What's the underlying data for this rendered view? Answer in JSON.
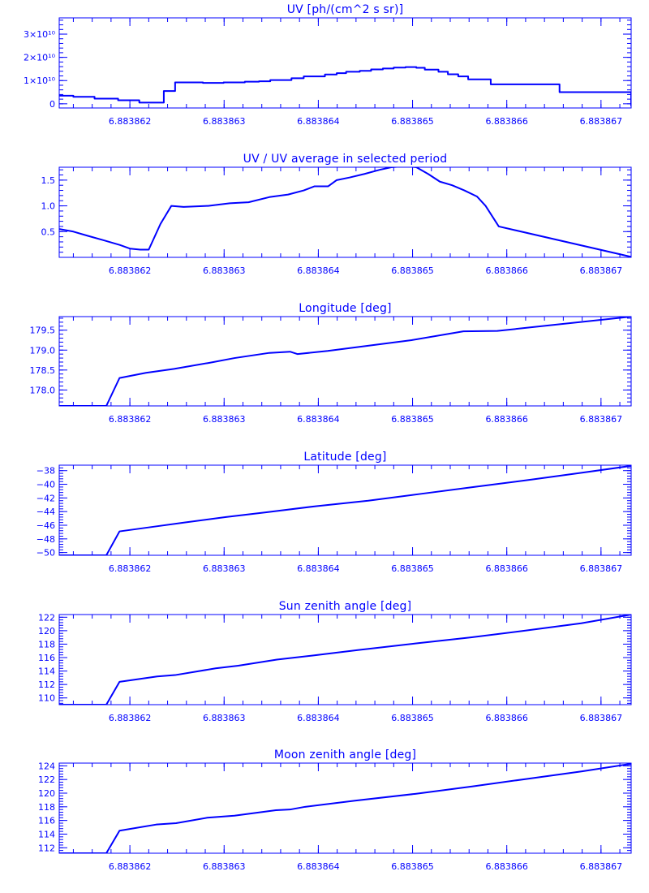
{
  "style": {
    "color": "#0000ff"
  },
  "chart_data": [
    {
      "id": "uv",
      "type": "line",
      "step": true,
      "title": "UV [ph/(cm^2 s sr)]",
      "xlabel": "",
      "ylabel": "",
      "xlim": [
        6.88386125,
        6.88386732
      ],
      "ylim": [
        -0.18,
        3.7
      ],
      "yscale_factor": "10^10",
      "xticks": [
        6.883862,
        6.883863,
        6.883864,
        6.883865,
        6.883866,
        6.883867
      ],
      "xtick_labels": [
        "6.883862",
        "6.883863",
        "6.883864",
        "6.883865",
        "6.883866",
        "6.883867"
      ],
      "yticks": [
        0,
        1,
        2,
        3
      ],
      "ytick_labels": [
        "0",
        "1×10¹⁰",
        "2×10¹⁰",
        "3×10¹⁰"
      ],
      "series": [
        {
          "x": [
            6.88386125,
            6.8838614,
            6.883861625,
            6.883861875,
            6.8838621,
            6.88386236,
            6.88386248,
            6.883862775,
            6.883862995,
            6.88386322,
            6.88386337,
            6.88386349,
            6.883863715,
            6.883863845,
            6.88386407,
            6.883864195,
            6.883864295,
            6.88386444,
            6.88386456,
            6.883864685,
            6.8838648,
            6.883864925,
            6.88386504,
            6.88386513,
            6.883865275,
            6.883865375,
            6.883865485,
            6.88386559,
            6.88386583,
            6.88386656,
            6.88386732
          ],
          "y": [
            0.35,
            0.3,
            0.22,
            0.15,
            0.05,
            0.55,
            0.92,
            0.9,
            0.92,
            0.95,
            0.97,
            1.02,
            1.1,
            1.18,
            1.26,
            1.32,
            1.38,
            1.42,
            1.48,
            1.52,
            1.56,
            1.58,
            1.55,
            1.47,
            1.38,
            1.27,
            1.18,
            1.05,
            0.84,
            0.5,
            -0.1
          ]
        }
      ]
    },
    {
      "id": "uv-ratio",
      "type": "line",
      "title": "UV / UV average in selected period",
      "xlabel": "",
      "ylabel": "",
      "xlim": [
        6.88386125,
        6.88386732
      ],
      "ylim": [
        0.0,
        1.75
      ],
      "xticks": [
        6.883862,
        6.883863,
        6.883864,
        6.883865,
        6.883866,
        6.883867
      ],
      "xtick_labels": [
        "6.883862",
        "6.883863",
        "6.883864",
        "6.883865",
        "6.883866",
        "6.883867"
      ],
      "yticks": [
        0.5,
        1.0,
        1.5
      ],
      "ytick_labels": [
        "0.5",
        "1.0",
        "1.5"
      ],
      "series": [
        {
          "x": [
            6.88386125,
            6.8838614,
            6.88386155,
            6.883861725,
            6.883861895,
            6.883862,
            6.88386211,
            6.8838622,
            6.883862325,
            6.88386244,
            6.88386257,
            6.88386283,
            6.88386306,
            6.88386326,
            6.88386348,
            6.88386368,
            6.883863845,
            6.88386396,
            6.883864105,
            6.883864195,
            6.88386433,
            6.88386449,
            6.88386465,
            6.883864775,
            6.883864925,
            6.88386504,
            6.883865165,
            6.88386529,
            6.88386542,
            6.88386555,
            6.883865685,
            6.883865775,
            6.883865915,
            6.88386732
          ],
          "y": [
            0.55,
            0.5,
            0.42,
            0.33,
            0.24,
            0.17,
            0.15,
            0.15,
            0.65,
            1.0,
            0.98,
            1.0,
            1.05,
            1.07,
            1.17,
            1.22,
            1.3,
            1.38,
            1.38,
            1.5,
            1.55,
            1.62,
            1.7,
            1.75,
            1.77,
            1.75,
            1.62,
            1.47,
            1.4,
            1.3,
            1.18,
            1.0,
            0.6,
            0.01
          ]
        }
      ]
    },
    {
      "id": "longitude",
      "type": "line",
      "title": "Longitude [deg]",
      "xlabel": "",
      "ylabel": "",
      "xlim": [
        6.88386125,
        6.88386732
      ],
      "ylim": [
        177.6,
        179.84
      ],
      "xticks": [
        6.883862,
        6.883863,
        6.883864,
        6.883865,
        6.883866,
        6.883867
      ],
      "xtick_labels": [
        "6.883862",
        "6.883863",
        "6.883864",
        "6.883865",
        "6.883866",
        "6.883867"
      ],
      "yticks": [
        178.0,
        178.5,
        179.0,
        179.5
      ],
      "ytick_labels": [
        "178.0",
        "178.5",
        "179.0",
        "179.5"
      ],
      "series": [
        {
          "x": [
            6.88386125,
            6.88386175,
            6.88386189,
            6.88386217,
            6.88386247,
            6.88386284,
            6.88386311,
            6.88386348,
            6.8838637,
            6.88386378,
            6.8838641,
            6.88386499,
            6.88386554,
            6.8838659,
            6.88386629,
            6.88386732
          ],
          "y": [
            177.6,
            177.6,
            178.3,
            178.43,
            178.53,
            178.68,
            178.8,
            178.93,
            178.96,
            178.9,
            178.98,
            179.25,
            179.47,
            179.48,
            179.58,
            179.84
          ]
        }
      ]
    },
    {
      "id": "latitude",
      "type": "line",
      "title": "Latitude [deg]",
      "xlabel": "",
      "ylabel": "",
      "xlim": [
        6.88386125,
        6.88386732
      ],
      "ylim": [
        -50.4,
        -37.2
      ],
      "xticks": [
        6.883862,
        6.883863,
        6.883864,
        6.883865,
        6.883866,
        6.883867
      ],
      "xtick_labels": [
        "6.883862",
        "6.883863",
        "6.883864",
        "6.883865",
        "6.883866",
        "6.883867"
      ],
      "yticks": [
        -50,
        -48,
        -46,
        -44,
        -42,
        -40,
        -38
      ],
      "ytick_labels": [
        "−50",
        "−48",
        "−46",
        "−44",
        "−42",
        "−40",
        "−38"
      ],
      "series": [
        {
          "x": [
            6.88386125,
            6.88386175,
            6.88386189,
            6.88386226,
            6.88386258,
            6.88386302,
            6.88386345,
            6.88386398,
            6.88386453,
            6.88386509,
            6.88386565,
            6.88386627,
            6.8838668,
            6.88386732
          ],
          "y": [
            -50.4,
            -50.4,
            -46.9,
            -46.2,
            -45.6,
            -44.8,
            -44.1,
            -43.2,
            -42.4,
            -41.4,
            -40.4,
            -39.3,
            -38.3,
            -37.3
          ]
        }
      ]
    },
    {
      "id": "sun-zenith",
      "type": "line",
      "title": "Sun zenith angle [deg]",
      "xlabel": "",
      "ylabel": "",
      "xlim": [
        6.88386125,
        6.88386732
      ],
      "ylim": [
        109.0,
        122.4
      ],
      "xticks": [
        6.883862,
        6.883863,
        6.883864,
        6.883865,
        6.883866,
        6.883867
      ],
      "xtick_labels": [
        "6.883862",
        "6.883863",
        "6.883864",
        "6.883865",
        "6.883866",
        "6.883867"
      ],
      "yticks": [
        110,
        112,
        114,
        116,
        118,
        120,
        122
      ],
      "ytick_labels": [
        "110",
        "112",
        "114",
        "116",
        "118",
        "120",
        "122"
      ],
      "series": [
        {
          "x": [
            6.88386125,
            6.88386175,
            6.88386189,
            6.88386229,
            6.88386248,
            6.88386291,
            6.88386315,
            6.88386356,
            6.88386394,
            6.88386441,
            6.88386503,
            6.88386562,
            6.88386619,
            6.88386679,
            6.88386732
          ],
          "y": [
            109.0,
            109.0,
            112.4,
            113.2,
            113.4,
            114.4,
            114.8,
            115.7,
            116.3,
            117.1,
            118.1,
            119.0,
            120.0,
            121.1,
            122.4
          ]
        }
      ]
    },
    {
      "id": "moon-zenith",
      "type": "line",
      "title": "Moon zenith angle [deg]",
      "xlabel": "",
      "ylabel": "",
      "xlim": [
        6.88386125,
        6.88386732
      ],
      "ylim": [
        111.2,
        124.4
      ],
      "xticks": [
        6.883862,
        6.883863,
        6.883864,
        6.883865,
        6.883866,
        6.883867
      ],
      "xtick_labels": [
        "6.883862",
        "6.883863",
        "6.883864",
        "6.883865",
        "6.883866",
        "6.883867"
      ],
      "yticks": [
        112,
        114,
        116,
        118,
        120,
        122,
        124
      ],
      "ytick_labels": [
        "112",
        "114",
        "116",
        "118",
        "120",
        "122",
        "124"
      ],
      "series": [
        {
          "x": [
            6.88386125,
            6.88386175,
            6.88386189,
            6.88386228,
            6.88386249,
            6.88386282,
            6.88386311,
            6.88386355,
            6.8838637,
            6.88386386,
            6.88386439,
            6.88386503,
            6.88386564,
            6.88386622,
            6.8838668,
            6.88386732
          ],
          "y": [
            111.2,
            111.2,
            114.5,
            115.4,
            115.6,
            116.4,
            116.7,
            117.5,
            117.6,
            118.0,
            118.9,
            119.9,
            121.0,
            122.1,
            123.2,
            124.3
          ]
        }
      ]
    }
  ]
}
